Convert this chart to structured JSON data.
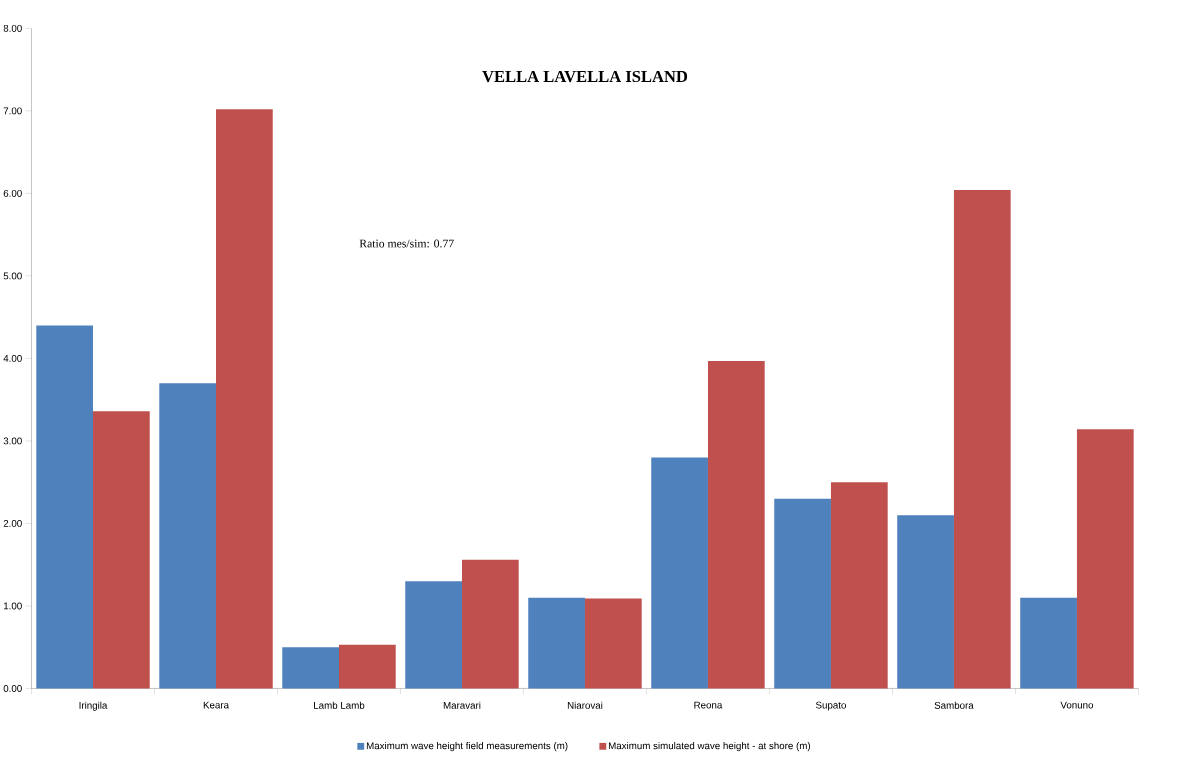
{
  "chart_data": {
    "type": "bar",
    "title": "VELLA LAVELLA ISLAND",
    "annotations": [
      "Ratio mes/sim: 0.77"
    ],
    "categories": [
      "Iringila",
      "Keara",
      "Lamb Lamb",
      "Maravari",
      "Niarovai",
      "Reona",
      "Supato",
      "Sambora",
      "Vonuno"
    ],
    "series": [
      {
        "name": "Maximum wave height field measurements (m)",
        "color": "#4f81bd",
        "values": [
          4.4,
          3.7,
          0.5,
          1.3,
          1.1,
          2.8,
          2.3,
          2.1,
          1.1
        ]
      },
      {
        "name": "Maximum simulated wave height - at shore (m)",
        "color": "#c0504d",
        "values": [
          3.36,
          7.02,
          0.53,
          1.56,
          1.09,
          3.97,
          2.5,
          6.04,
          3.14
        ]
      }
    ],
    "ylim": [
      0,
      8
    ],
    "yticks": [
      {
        "value": 0,
        "label": "0.00"
      },
      {
        "value": 1,
        "label": "1.00"
      },
      {
        "value": 2,
        "label": "2.00"
      },
      {
        "value": 3,
        "label": "3.00"
      },
      {
        "value": 4,
        "label": "4.00"
      },
      {
        "value": 5,
        "label": "5.00"
      },
      {
        "value": 6,
        "label": "6.00"
      },
      {
        "value": 7,
        "label": "7.00"
      },
      {
        "value": 8,
        "label": "8.00"
      }
    ],
    "legend": "bottom"
  }
}
